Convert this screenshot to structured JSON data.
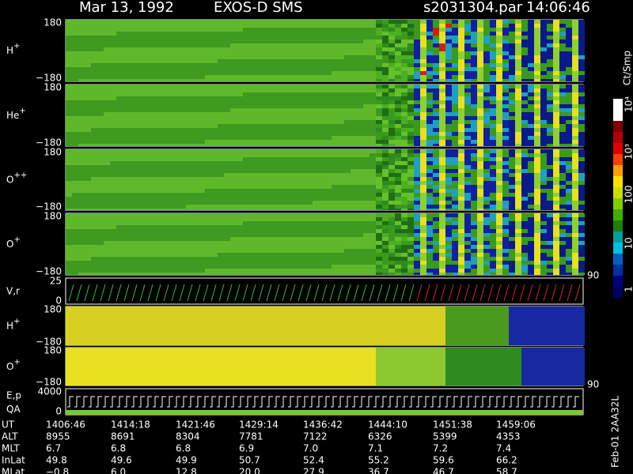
{
  "header": {
    "date": "Mar 13, 1992",
    "instrument": "EXOS-D SMS",
    "file": "s2031304.par",
    "time": "14:06:46"
  },
  "panels": [
    {
      "label": "H",
      "sup": "+",
      "top": "180",
      "bottom": "−180"
    },
    {
      "label": "He",
      "sup": "+",
      "top": "180",
      "bottom": "−180"
    },
    {
      "label": "O",
      "sup": "++",
      "top": "180",
      "bottom": "−180"
    },
    {
      "label": "O",
      "sup": "+",
      "top": "180",
      "bottom": "−180"
    },
    {
      "label": "V,r",
      "top": "25",
      "bottom": "0"
    },
    {
      "label": "H",
      "sup": "+",
      "top": "180",
      "bottom": "−180"
    },
    {
      "label": "O",
      "sup": "+",
      "top": "180",
      "bottom": "−180"
    },
    {
      "label": "E,p",
      "label2": "QA",
      "top": "4000",
      "bottom": "0"
    }
  ],
  "right_labels": [
    "90",
    "90"
  ],
  "colorbar": {
    "unit": "Ct/Smp",
    "labels": [
      "10⁴",
      "10³",
      "100",
      "10",
      "1"
    ]
  },
  "table": {
    "rows": [
      [
        "UT",
        "1406:46",
        "1414:18",
        "1421:46",
        "1429:14",
        "1436:42",
        "1444:10",
        "1451:38",
        "1459:06"
      ],
      [
        "ALT",
        "8955",
        "8691",
        "8304",
        "7781",
        "7122",
        "6326",
        "5399",
        "4353"
      ],
      [
        "MLT",
        "6.7",
        "6.8",
        "6.8",
        "6.9",
        "7.0",
        "7.1",
        "7.2",
        "7.4"
      ],
      [
        "InLat",
        "49.8",
        "49.6",
        "49.9",
        "50.7",
        "52.4",
        "55.2",
        "59.6",
        "66.2"
      ],
      [
        "MLat",
        "−0.8",
        "6.0",
        "12.8",
        "20.0",
        "27.9",
        "36.7",
        "46.7",
        "58.7"
      ]
    ]
  },
  "footer": "Feb-01 2AA32L"
}
